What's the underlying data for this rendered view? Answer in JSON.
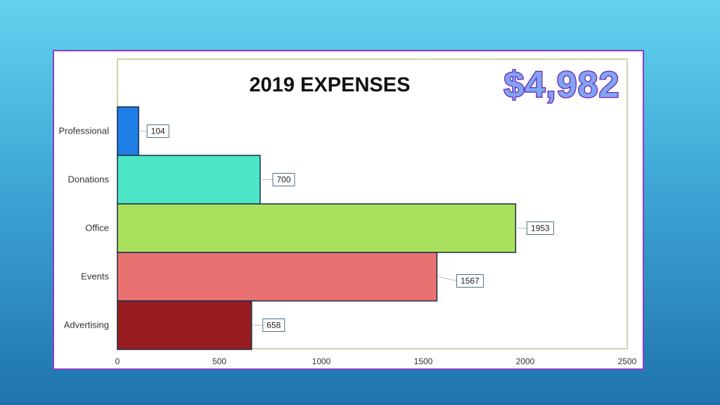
{
  "chart_data": {
    "type": "bar",
    "orientation": "horizontal",
    "title": "2019 EXPENSES",
    "total_label": "$4,982",
    "categories": [
      "Professional",
      "Donations",
      "Office",
      "Events",
      "Advertising"
    ],
    "values": [
      104,
      700,
      1953,
      1567,
      658
    ],
    "colors": [
      "#1f7de6",
      "#4ce5c5",
      "#a9e05d",
      "#e97171",
      "#971c1f"
    ],
    "xlim": [
      0,
      2500
    ],
    "xticks": [
      0,
      500,
      1000,
      1500,
      2000,
      2500
    ],
    "xlabel": "",
    "ylabel": "",
    "data_labels": true,
    "legend": "none",
    "grid": false
  }
}
